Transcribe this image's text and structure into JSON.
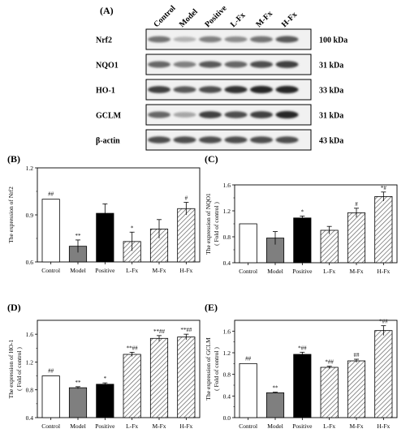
{
  "panelA": {
    "label": "(A)",
    "lanes": [
      "Control",
      "Model",
      "Positive",
      "L-Fx",
      "M-Fx",
      "H-Fx"
    ],
    "bands": [
      {
        "name": "Nrf2",
        "size": "100 kDa",
        "intensity": [
          0.55,
          0.3,
          0.5,
          0.45,
          0.55,
          0.65
        ]
      },
      {
        "name": "NQO1",
        "size": "31 kDa",
        "intensity": [
          0.6,
          0.5,
          0.65,
          0.6,
          0.7,
          0.75
        ]
      },
      {
        "name": "HO-1",
        "size": "33 kDa",
        "intensity": [
          0.75,
          0.65,
          0.7,
          0.8,
          0.85,
          0.85
        ]
      },
      {
        "name": "GCLM",
        "size": "31 kDa",
        "intensity": [
          0.6,
          0.35,
          0.75,
          0.7,
          0.75,
          0.85
        ]
      },
      {
        "name": "β-actin",
        "size": "43 kDa",
        "intensity": [
          0.7,
          0.7,
          0.7,
          0.7,
          0.7,
          0.7
        ]
      }
    ]
  },
  "chart_data": [
    {
      "panel": "(B)",
      "type": "bar",
      "categories": [
        "Control",
        "Model",
        "Positive",
        "L-Fx",
        "M-Fx",
        "H-Fx"
      ],
      "values": [
        1.0,
        0.7,
        0.91,
        0.73,
        0.81,
        0.94
      ],
      "errors": [
        0,
        0.04,
        0.06,
        0.06,
        0.06,
        0.04
      ],
      "annotations": [
        "##",
        "**",
        "",
        "*",
        "",
        "#"
      ],
      "ylabel": "The expression of Nrf2",
      "ylabel2": "",
      "ylim": [
        0.6,
        1.2
      ],
      "yticks": [
        "0.6",
        "0.9",
        "1.2"
      ]
    },
    {
      "panel": "(C)",
      "type": "bar",
      "categories": [
        "Control",
        "Model",
        "Positive",
        "L-Fx",
        "M-Fx",
        "H-Fx"
      ],
      "values": [
        1.0,
        0.78,
        1.09,
        0.9,
        1.17,
        1.42
      ],
      "errors": [
        0,
        0.1,
        0.03,
        0.06,
        0.07,
        0.07
      ],
      "annotations": [
        "",
        "",
        "*",
        "",
        "#",
        "*#"
      ],
      "ylabel": "The expression of NQO1",
      "ylabel2": "( Fold of control )",
      "ylim": [
        0.4,
        1.6
      ],
      "yticks": [
        "0.4",
        "0.8",
        "1.2",
        "1.6"
      ]
    },
    {
      "panel": "(D)",
      "type": "bar",
      "categories": [
        "Control",
        "Model",
        "Positive",
        "L-Fx",
        "M-Fx",
        "H-Fx"
      ],
      "values": [
        1.0,
        0.83,
        0.88,
        1.31,
        1.54,
        1.56
      ],
      "errors": [
        0,
        0.015,
        0.02,
        0.03,
        0.04,
        0.04
      ],
      "annotations": [
        "##",
        "**",
        "*",
        "**##",
        "**##",
        "**##"
      ],
      "ylabel": "The expression of HO-1",
      "ylabel2": "( Fold of control )",
      "ylim": [
        0.4,
        1.8
      ],
      "yticks": [
        "0.4",
        "0.8",
        "1.2",
        "1.6"
      ]
    },
    {
      "panel": "(E)",
      "type": "bar",
      "categories": [
        "Control",
        "Model",
        "Positive",
        "L-Fx",
        "M-Fx",
        "H-Fx"
      ],
      "values": [
        1.0,
        0.46,
        1.17,
        0.93,
        1.05,
        1.61
      ],
      "errors": [
        0,
        0.01,
        0.04,
        0.02,
        0.03,
        0.09
      ],
      "annotations": [
        "##",
        "**",
        "*##",
        "*##",
        "##",
        "*##"
      ],
      "ylabel": "The expression of GCLM",
      "ylabel2": "( Fold of control )",
      "ylim": [
        0.0,
        1.8
      ],
      "yticks": [
        "0.0",
        "0.4",
        "0.8",
        "1.2",
        "1.6"
      ]
    }
  ],
  "bar_fills": [
    "white",
    "#7f7f7f",
    "#000000",
    "hatch",
    "hatch",
    "hatch"
  ]
}
